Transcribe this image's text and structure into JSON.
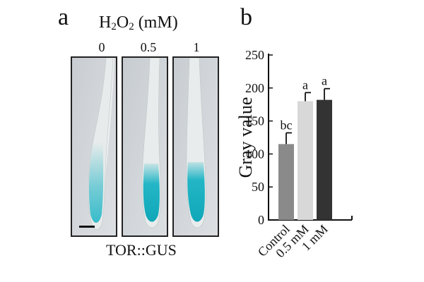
{
  "figure": {
    "panel_a": {
      "letter": "a",
      "title_main": "H",
      "title_sub1": "2",
      "title_mid": "O",
      "title_sub2": "2",
      "title_tail": " (mM)",
      "concentrations": [
        "0",
        "0.5",
        "1"
      ],
      "caption": "TOR::GUS",
      "stain_color": "#19b3c4"
    },
    "panel_b": {
      "letter": "b"
    }
  },
  "chart_data": {
    "type": "bar",
    "categories": [
      "Control",
      "0.5 mM",
      "1 mM"
    ],
    "values": [
      115,
      180,
      182
    ],
    "errors": [
      17,
      13,
      17
    ],
    "significance": [
      "bc",
      "a",
      "a"
    ],
    "bar_colors": [
      "#8a8a8a",
      "#d8d8d8",
      "#333333"
    ],
    "ylabel": "Gray value",
    "ylim": [
      0,
      250
    ],
    "yticks": [
      0,
      50,
      100,
      150,
      200,
      250
    ],
    "title": "",
    "xlabel": "",
    "grid": false
  }
}
